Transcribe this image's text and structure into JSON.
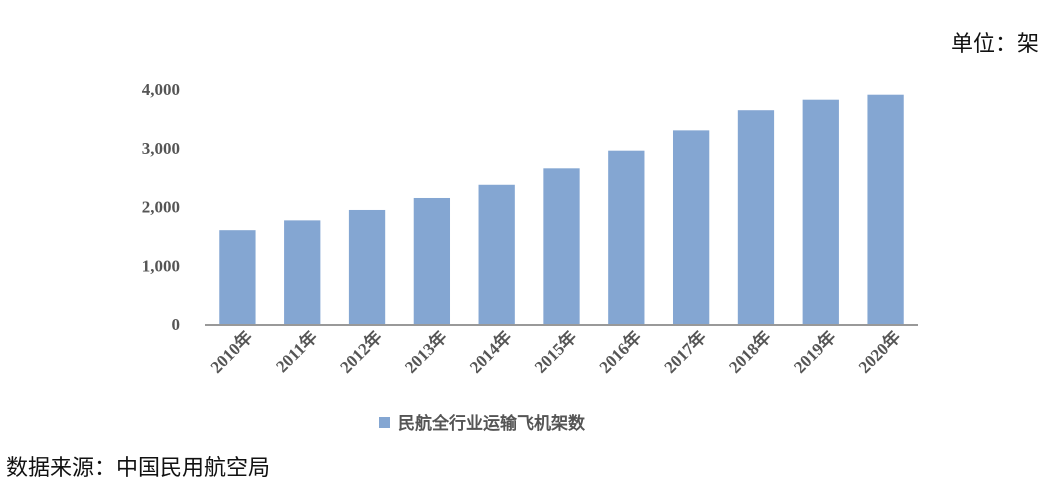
{
  "header": {
    "unit_label": "单位：架"
  },
  "footer": {
    "source_label": "数据来源：中国民用航空局"
  },
  "chart_data": {
    "type": "bar",
    "categories": [
      "2010年",
      "2011年",
      "2012年",
      "2013年",
      "2014年",
      "2015年",
      "2016年",
      "2017年",
      "2018年",
      "2019年",
      "2020年"
    ],
    "series": [
      {
        "name": "民航全行业运输飞机架数",
        "values": [
          1597,
          1764,
          1941,
          2145,
          2370,
          2650,
          2950,
          3296,
          3639,
          3818,
          3903
        ],
        "color": "#84A6D2"
      }
    ],
    "yticks": [
      "4,000",
      "3,000",
      "2,000",
      "1,000",
      "0"
    ],
    "ylim": [
      0,
      4000
    ],
    "grid": false,
    "legend_position": "bottom"
  }
}
